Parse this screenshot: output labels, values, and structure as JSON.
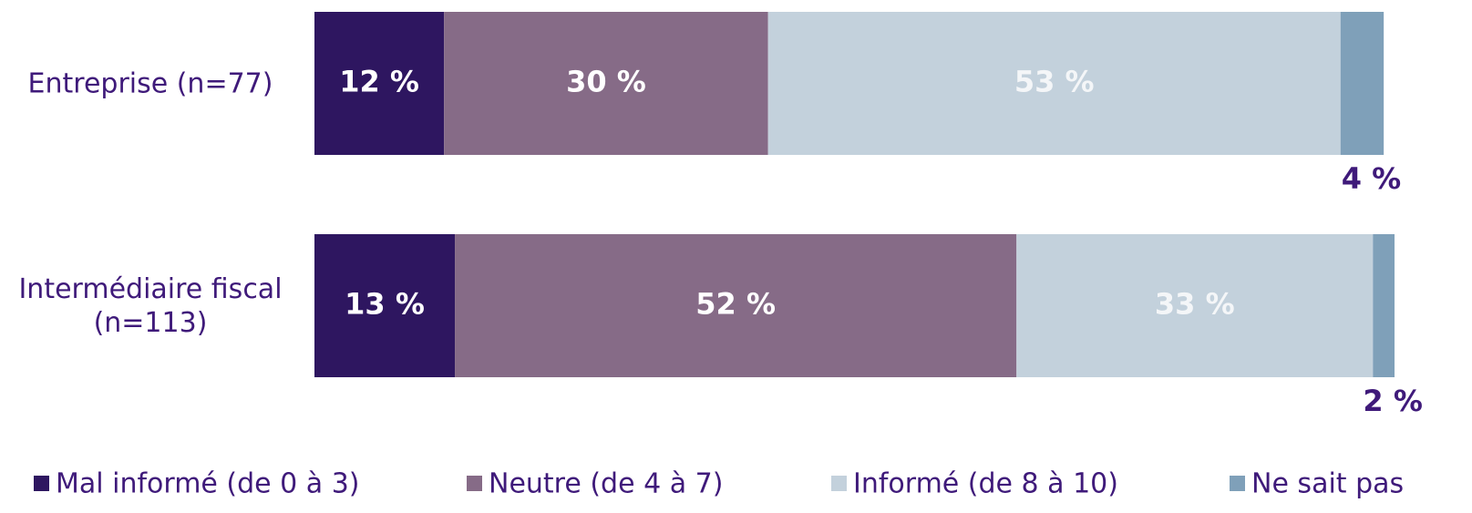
{
  "chart_data": {
    "type": "stacked-bar-horizontal",
    "categories": [
      "Entreprise (n=77)",
      "Intermédiaire fiscal (n=113)"
    ],
    "series": [
      {
        "name": "Mal informé (de 0 à 3)",
        "color": "#2e1660",
        "values": [
          12,
          13
        ],
        "value_labels": [
          "12 %",
          "13 %"
        ]
      },
      {
        "name": "Neutre (de 4 à 7)",
        "color": "#866b87",
        "values": [
          30,
          52
        ],
        "value_labels": [
          "30 %",
          "52 %"
        ]
      },
      {
        "name": "Informé (de 8 à 10)",
        "color": "#c3d1dc",
        "values": [
          53,
          33
        ],
        "value_labels": [
          "53 %",
          "33 %"
        ]
      },
      {
        "name": "Ne sait pas",
        "color": "#7fa0b9",
        "values": [
          4,
          2
        ],
        "value_labels": [
          "4 %",
          "2 %"
        ]
      }
    ],
    "xlim": [
      0,
      100
    ],
    "legend": "bottom"
  }
}
